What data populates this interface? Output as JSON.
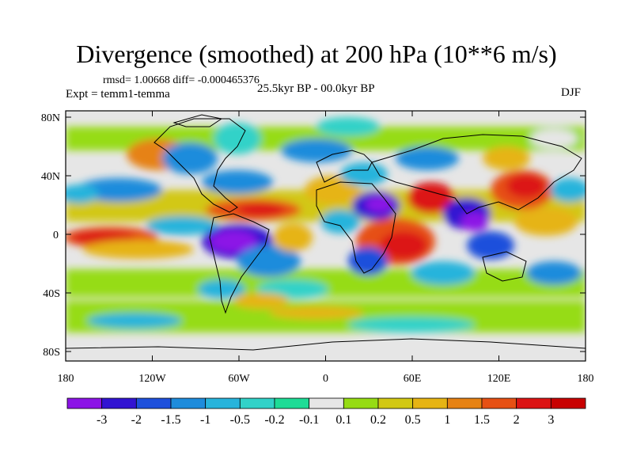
{
  "title": "Divergence (smoothed) at 200 hPa (10**6 m/s)",
  "stats_text": "rmsd= 1.00668 diff= -0.000465376",
  "expt_text": "Expt = temm1-temma",
  "period_text": "25.5kyr BP - 00.0kyr BP",
  "season": "DJF",
  "axes": {
    "lat_labels": [
      "80N",
      "40N",
      "0",
      "40S",
      "80S"
    ],
    "lon_labels": [
      "180",
      "120W",
      "60W",
      "0",
      "60E",
      "120E",
      "180"
    ]
  },
  "colorbar": {
    "labels": [
      "-3",
      "-2",
      "-1.5",
      "-1",
      "-0.5",
      "-0.2",
      "-0.1",
      "0.1",
      "0.2",
      "0.5",
      "1",
      "1.5",
      "2",
      "3"
    ],
    "colors": [
      "#8c14e6",
      "#3214d2",
      "#1e50dc",
      "#1e8cdc",
      "#28b4dc",
      "#32d2c8",
      "#1edc96",
      "#e6e6e6",
      "#96dc14",
      "#d2c814",
      "#e6b414",
      "#e68214",
      "#e65014",
      "#dc1414",
      "#c80000"
    ]
  }
}
